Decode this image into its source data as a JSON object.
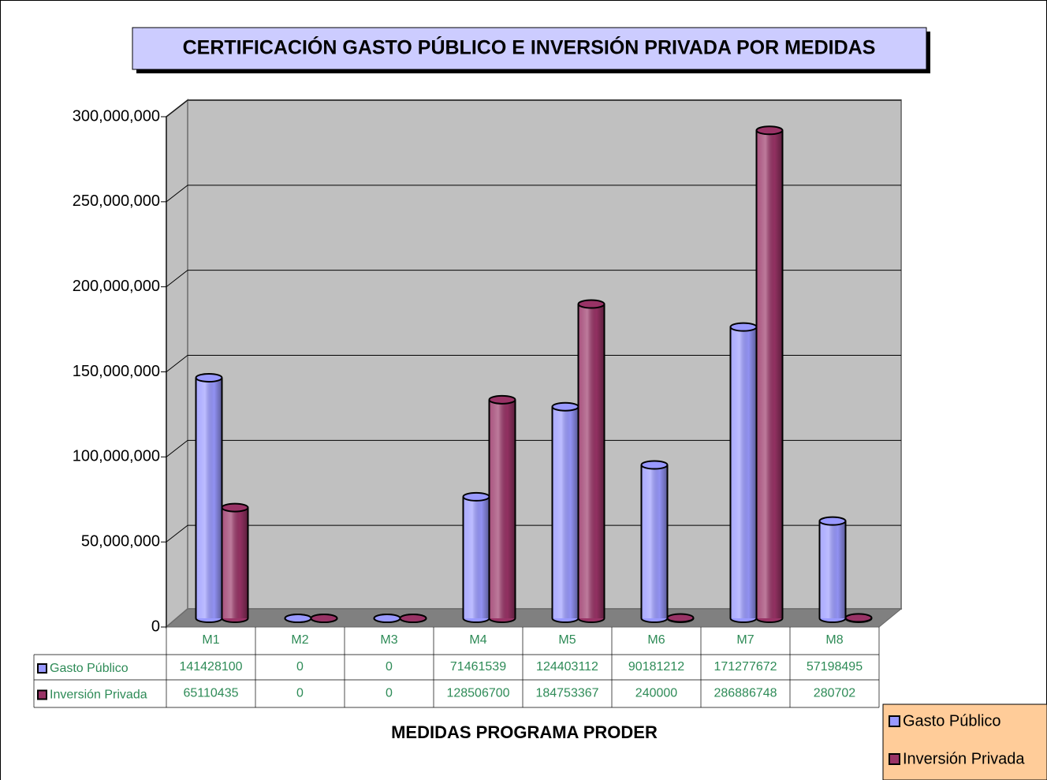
{
  "chart_data": {
    "type": "bar3d",
    "title": "CERTIFICACIÓN GASTO PÚBLICO E INVERSIÓN PRIVADA POR MEDIDAS",
    "x_label": "MEDIDAS PROGRAMA PRODER",
    "categories": [
      "M1",
      "M2",
      "M3",
      "M4",
      "M5",
      "M6",
      "M7",
      "M8"
    ],
    "series": [
      {
        "name": "Gasto Público",
        "color": "#9999ff",
        "values": [
          141428100,
          0,
          0,
          71461539,
          124403112,
          90181212,
          171277672,
          57198495
        ]
      },
      {
        "name": "Inversión Privada",
        "color": "#993366",
        "values": [
          65110435,
          0,
          0,
          128506700,
          184753367,
          240000,
          286886748,
          280702
        ]
      }
    ],
    "ylim": [
      0,
      300000000
    ],
    "yticks": [
      0,
      {
        "value": 50000000,
        "label": "50,000,000"
      },
      {
        "value": 100000000,
        "label": "100,000,000"
      },
      {
        "value": 150000000,
        "label": "150,000,000"
      },
      {
        "value": 200000000,
        "label": "200,000,000"
      },
      {
        "value": 250000000,
        "label": "250,000,000"
      },
      {
        "value": 300000000,
        "label": "300,000,000"
      }
    ],
    "grid": true,
    "legend": "bottom-right",
    "data_table": true
  }
}
